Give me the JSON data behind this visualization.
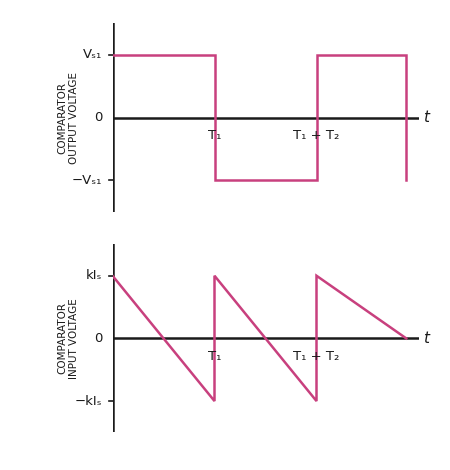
{
  "fig_width": 4.5,
  "fig_height": 4.7,
  "dpi": 100,
  "background_color": "#ffffff",
  "waveform_color": "#c8407e",
  "axis_color": "#1a1a1a",
  "text_color": "#1a1a1a",
  "top_ylabel": "COMPARATOR\nOUTPUT VOLTAGE",
  "bot_ylabel": "COMPARATOR\nINPUT VOLTAGE",
  "T1_label": "T₁",
  "T1T2_label": "T₁ + T₂",
  "VS1_label": "Vₛ₁",
  "negVS1_label": "−Vₛ₁",
  "kIs_label": "kIₛ",
  "negkIs_label": "−kIₛ",
  "zero_label": "0",
  "t_label": "t",
  "T1": 2.5,
  "T2": 2.5,
  "ylim": [
    -1.5,
    1.5
  ],
  "xlim": [
    0.0,
    7.5
  ],
  "line_width": 1.8,
  "ylabel_fontsize": 7.5,
  "tick_label_fontsize": 9.5,
  "t_fontsize": 11
}
